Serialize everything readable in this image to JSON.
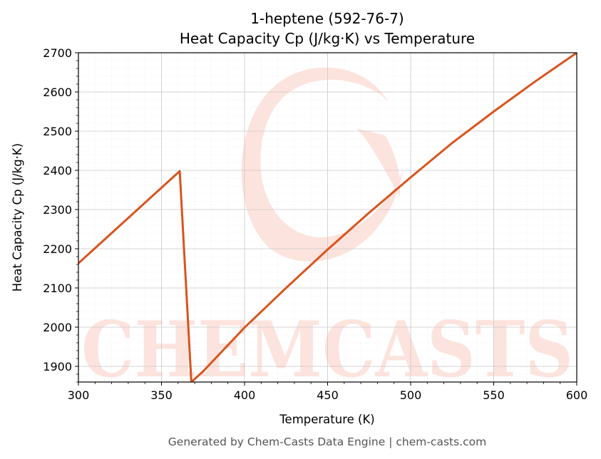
{
  "chart_data": {
    "type": "line",
    "title_line1": "1-heptene (592-76-7)",
    "title_line2": "Heat Capacity Cp (J/kg·K) vs Temperature",
    "xlabel": "Temperature (K)",
    "ylabel": "Heat Capacity Cp (J/kg·K)",
    "xlim": [
      300,
      600
    ],
    "ylim": [
      1860,
      2700
    ],
    "xticks": [
      300,
      350,
      400,
      450,
      500,
      550,
      600
    ],
    "yticks": [
      1900,
      2000,
      2100,
      2200,
      2300,
      2400,
      2500,
      2600,
      2700
    ],
    "grid": true,
    "line_color": "#d9541e",
    "series": [
      {
        "x": [
          300,
          361,
          368,
          375,
          400,
          425,
          450,
          475,
          500,
          525,
          550,
          575,
          600
        ],
        "values": [
          2163,
          2398,
          1860,
          1887,
          1999,
          2100,
          2198,
          2292,
          2382,
          2470,
          2550,
          2627,
          2700
        ]
      }
    ]
  },
  "watermark": {
    "text": "CHEMCASTS",
    "color": "#fde3dd"
  },
  "footer": "Generated by Chem-Casts Data Engine | chem-casts.com"
}
